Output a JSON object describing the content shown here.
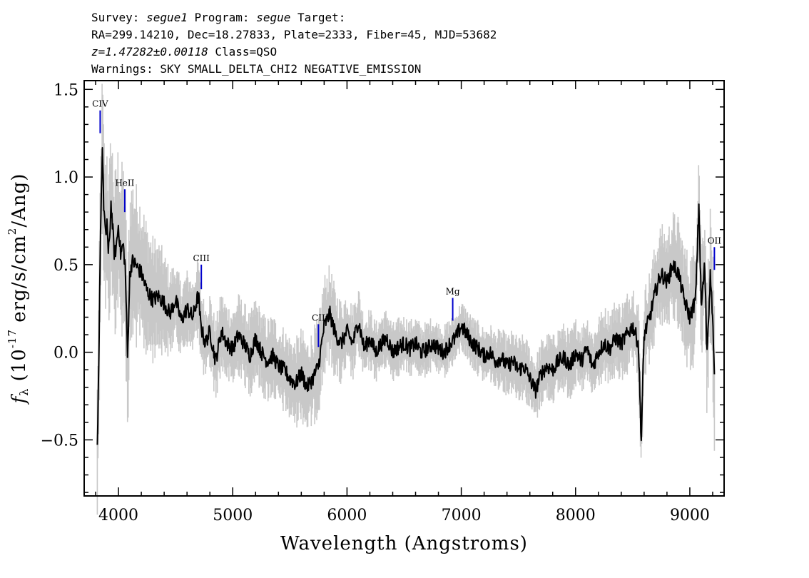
{
  "header": {
    "line1": [
      {
        "t": "Survey: ",
        "i": false
      },
      {
        "t": "segue1",
        "i": true
      },
      {
        "t": " Program: ",
        "i": false
      },
      {
        "t": "segue",
        "i": true
      },
      {
        "t": " Target:",
        "i": false
      }
    ],
    "line2": "RA=299.14210, Dec=18.27833, Plate=2333, Fiber=45, MJD=53682",
    "line3": [
      {
        "t": "z=1.47282±0.00118",
        "i": true
      },
      {
        "t": " Class=QSO",
        "i": false
      }
    ],
    "line4": "Warnings: SKY SMALL_DELTA_CHI2 NEGATIVE_EMISSION"
  },
  "chart_data": {
    "type": "line",
    "xlabel": "Wavelength (Angstroms)",
    "ylabel": "f_λ (10^-17 erg/s/cm^2/Ang)",
    "xlim": [
      3700,
      9300
    ],
    "ylim": [
      -0.82,
      1.55
    ],
    "xticks": [
      4000,
      5000,
      6000,
      7000,
      8000,
      9000
    ],
    "xtick_labels": [
      "4000",
      "5000",
      "6000",
      "7000",
      "8000",
      "9000"
    ],
    "yticks": [
      -0.5,
      0.0,
      0.5,
      1.0,
      1.5
    ],
    "ytick_labels": [
      "−0.5",
      "0.0",
      "0.5",
      "1.0",
      "1.5"
    ],
    "colors": {
      "flux": "#000000",
      "noise": "#c8c8c8",
      "lines": "#0000cc"
    },
    "series": [
      {
        "key": "flux",
        "x": [
          3815,
          3830,
          3840,
          3850,
          3860,
          3870,
          3880,
          3890,
          3900,
          3910,
          3920,
          3935,
          3950,
          3965,
          3980,
          4000,
          4020,
          4040,
          4060,
          4080,
          4090,
          4100,
          4120,
          4150,
          4200,
          4250,
          4300,
          4350,
          4400,
          4450,
          4500,
          4550,
          4600,
          4650,
          4700,
          4720,
          4740,
          4760,
          4800,
          4850,
          4900,
          4950,
          5000,
          5050,
          5100,
          5150,
          5200,
          5250,
          5300,
          5350,
          5400,
          5450,
          5500,
          5550,
          5600,
          5650,
          5700,
          5750,
          5800,
          5850,
          5900,
          5950,
          6000,
          6050,
          6100,
          6150,
          6200,
          6250,
          6300,
          6350,
          6400,
          6450,
          6500,
          6550,
          6600,
          6650,
          6700,
          6750,
          6800,
          6850,
          6900,
          6950,
          7000,
          7050,
          7100,
          7150,
          7200,
          7250,
          7300,
          7350,
          7400,
          7450,
          7500,
          7550,
          7600,
          7650,
          7700,
          7750,
          7800,
          7850,
          7900,
          7950,
          8000,
          8050,
          8100,
          8150,
          8200,
          8250,
          8300,
          8350,
          8400,
          8450,
          8500,
          8550,
          8575,
          8600,
          8650,
          8700,
          8750,
          8800,
          8850,
          8900,
          8950,
          9000,
          9050,
          9080,
          9100,
          9130,
          9150,
          9180,
          9200,
          9215
        ],
        "y": [
          -0.57,
          0.0,
          0.6,
          0.9,
          1.19,
          0.85,
          0.75,
          0.62,
          0.78,
          0.55,
          0.62,
          0.85,
          0.7,
          0.55,
          0.6,
          0.73,
          0.55,
          0.62,
          0.48,
          -0.05,
          0.25,
          0.45,
          0.52,
          0.5,
          0.45,
          0.35,
          0.3,
          0.32,
          0.28,
          0.22,
          0.3,
          0.18,
          0.25,
          0.2,
          0.33,
          0.15,
          0.1,
          0.05,
          0.12,
          -0.05,
          0.12,
          0.05,
          0.02,
          0.1,
          0.05,
          -0.02,
          0.08,
          0.0,
          -0.05,
          -0.02,
          -0.08,
          -0.1,
          -0.15,
          -0.18,
          -0.12,
          -0.2,
          -0.15,
          -0.08,
          0.15,
          0.22,
          0.1,
          0.05,
          0.12,
          0.05,
          0.18,
          0.02,
          0.08,
          0.0,
          0.05,
          0.08,
          0.0,
          0.03,
          0.05,
          0.02,
          0.05,
          0.0,
          0.02,
          0.05,
          0.02,
          0.0,
          0.05,
          0.08,
          0.15,
          0.1,
          0.05,
          0.02,
          -0.02,
          0.0,
          -0.05,
          -0.03,
          -0.08,
          -0.05,
          -0.1,
          -0.08,
          -0.15,
          -0.22,
          -0.12,
          -0.08,
          -0.1,
          -0.05,
          -0.03,
          -0.08,
          0.0,
          -0.05,
          0.02,
          -0.08,
          0.0,
          0.05,
          0.02,
          0.08,
          0.05,
          0.1,
          0.15,
          0.05,
          -0.5,
          0.1,
          0.2,
          0.35,
          0.45,
          0.4,
          0.5,
          0.45,
          0.3,
          0.2,
          0.3,
          0.85,
          0.25,
          0.5,
          0.0,
          0.45,
          0.2,
          -0.15
        ]
      }
    ],
    "noise_halfwidth": [
      {
        "x": 3815,
        "w": 0.3
      },
      {
        "x": 4100,
        "w": 0.35
      },
      {
        "x": 4500,
        "w": 0.15
      },
      {
        "x": 5500,
        "w": 0.17
      },
      {
        "x": 5800,
        "w": 0.2
      },
      {
        "x": 6200,
        "w": 0.12
      },
      {
        "x": 7000,
        "w": 0.1
      },
      {
        "x": 7600,
        "w": 0.13
      },
      {
        "x": 8200,
        "w": 0.14
      },
      {
        "x": 8800,
        "w": 0.2
      },
      {
        "x": 9215,
        "w": 0.28
      }
    ],
    "annotations": [
      {
        "label": "CIV",
        "x": 3840,
        "y_top": 1.38,
        "y_bot": 1.25
      },
      {
        "label": "HeII",
        "x": 4055,
        "y_top": 0.93,
        "y_bot": 0.8
      },
      {
        "label": "CIII",
        "x": 4725,
        "y_top": 0.5,
        "y_bot": 0.36
      },
      {
        "label": "CII",
        "x": 5750,
        "y_top": 0.16,
        "y_bot": 0.03
      },
      {
        "label": "Mg",
        "x": 6925,
        "y_top": 0.31,
        "y_bot": 0.18
      },
      {
        "label": "OII",
        "x": 9215,
        "y_top": 0.6,
        "y_bot": 0.47
      }
    ]
  }
}
